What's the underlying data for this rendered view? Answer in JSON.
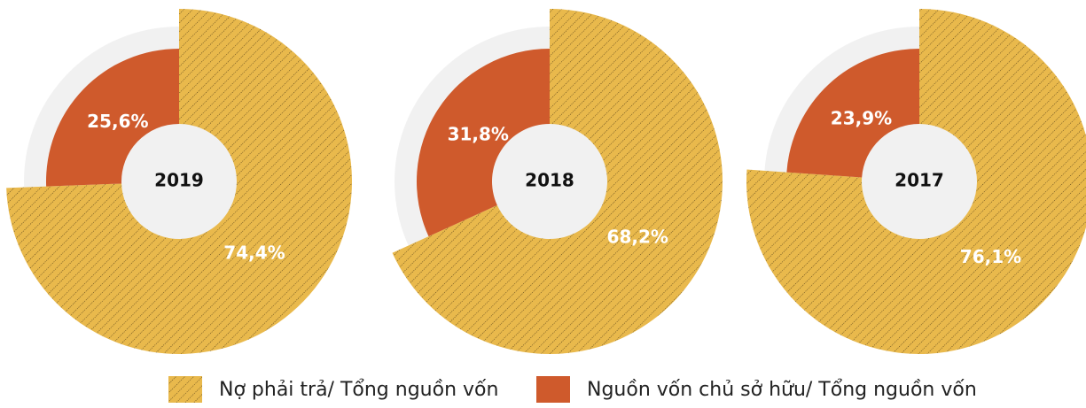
{
  "chart_data": [
    {
      "type": "pie",
      "title": "2019",
      "values": [
        74.4,
        25.6
      ],
      "value_labels": [
        "74,4%",
        "25,6%"
      ]
    },
    {
      "type": "pie",
      "title": "2018",
      "values": [
        68.2,
        31.8
      ],
      "value_labels": [
        "68,2%",
        "31,8%"
      ]
    },
    {
      "type": "pie",
      "title": "2017",
      "values": [
        76.1,
        23.9
      ],
      "value_labels": [
        "76,1%",
        "23,9%"
      ]
    }
  ],
  "legend": [
    {
      "name": "Nợ phải trả/ Tổng nguồn vốn",
      "color": "#e9b94c",
      "hatch": true
    },
    {
      "name": "Nguồn vốn chủ sở hữu/ Tổng nguồn vốn",
      "color": "#cf5a2c",
      "hatch": false
    }
  ]
}
